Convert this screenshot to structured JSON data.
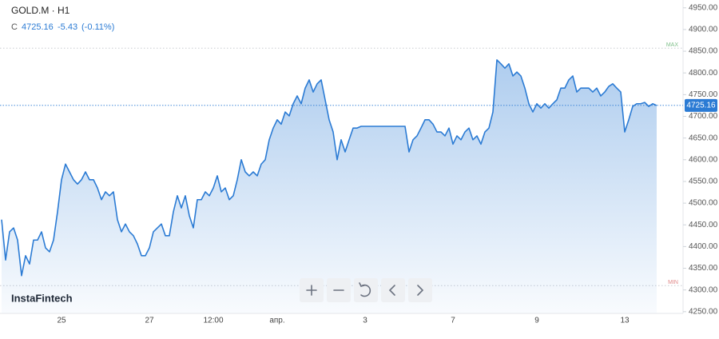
{
  "chart_data": {
    "type": "area",
    "symbol": "GOLD.M · H1",
    "price_prefix": "C",
    "last_price": 4725.16,
    "change": -5.43,
    "change_pct": {
      "value": -0.11,
      "label": "(-0.11%)"
    },
    "brand": "InstaFintech",
    "color": "#2b7bd4",
    "max_line": {
      "label": "MAX",
      "value": 4857
    },
    "min_line": {
      "label": "MIN",
      "value": 4310
    },
    "ylim": [
      4246,
      4968
    ],
    "yticks": [
      {
        "value": 4250,
        "label": "4250.00"
      },
      {
        "value": 4300,
        "label": "4300.00"
      },
      {
        "value": 4350,
        "label": "4350.00"
      },
      {
        "value": 4400,
        "label": "4400.00"
      },
      {
        "value": 4450,
        "label": "4450.00"
      },
      {
        "value": 4500,
        "label": "4500.00"
      },
      {
        "value": 4550,
        "label": "4550.00"
      },
      {
        "value": 4600,
        "label": "4600.00"
      },
      {
        "value": 4650,
        "label": "4650.00"
      },
      {
        "value": 4700,
        "label": "4700.00"
      },
      {
        "value": 4750,
        "label": "4750.00"
      },
      {
        "value": 4800,
        "label": "4800.00"
      },
      {
        "value": 4850,
        "label": "4850.00"
      },
      {
        "value": 4900,
        "label": "4900.00"
      },
      {
        "value": 4950,
        "label": "4950.00"
      }
    ],
    "categories": [
      null,
      null,
      null,
      null,
      null,
      null,
      null,
      null,
      null,
      null,
      null,
      null,
      null,
      null,
      null,
      "25",
      null,
      null,
      null,
      null,
      null,
      null,
      null,
      null,
      null,
      null,
      null,
      null,
      null,
      null,
      null,
      null,
      null,
      null,
      null,
      null,
      null,
      "27",
      null,
      null,
      null,
      null,
      null,
      null,
      null,
      null,
      null,
      null,
      null,
      null,
      null,
      null,
      null,
      "12:00",
      null,
      null,
      null,
      null,
      null,
      null,
      null,
      null,
      null,
      null,
      null,
      null,
      null,
      null,
      null,
      "апр.",
      null,
      null,
      null,
      null,
      null,
      null,
      null,
      null,
      null,
      null,
      null,
      null,
      null,
      null,
      null,
      null,
      null,
      null,
      null,
      null,
      null,
      "3",
      null,
      null,
      null,
      null,
      null,
      null,
      null,
      null,
      null,
      null,
      null,
      null,
      null,
      null,
      null,
      null,
      null,
      null,
      null,
      null,
      null,
      "7",
      null,
      null,
      null,
      null,
      null,
      null,
      null,
      null,
      null,
      null,
      null,
      null,
      null,
      null,
      null,
      null,
      null,
      null,
      null,
      null,
      "9",
      null,
      null,
      null,
      null,
      null,
      null,
      null,
      null,
      null,
      null,
      null,
      null,
      null,
      null,
      null,
      null,
      null,
      null,
      null,
      null,
      null,
      "13",
      null,
      null,
      null,
      null,
      null,
      null,
      null,
      null
    ],
    "values": [
      4462,
      4369,
      4434,
      4443,
      4415,
      4333,
      4379,
      4360,
      4415,
      4415,
      4434,
      4397,
      4388,
      4415,
      4480,
      4554,
      4590,
      4572,
      4554,
      4544,
      4554,
      4572,
      4554,
      4554,
      4535,
      4508,
      4526,
      4517,
      4526,
      4462,
      4434,
      4452,
      4434,
      4425,
      4406,
      4379,
      4379,
      4397,
      4434,
      4443,
      4452,
      4425,
      4425,
      4480,
      4517,
      4489,
      4517,
      4471,
      4443,
      4508,
      4508,
      4526,
      4517,
      4535,
      4563,
      4526,
      4535,
      4508,
      4517,
      4554,
      4600,
      4572,
      4563,
      4572,
      4563,
      4590,
      4600,
      4646,
      4673,
      4692,
      4682,
      4710,
      4701,
      4729,
      4747,
      4729,
      4765,
      4784,
      4756,
      4775,
      4784,
      4738,
      4692,
      4664,
      4600,
      4646,
      4618,
      4646,
      4673,
      4673,
      4677,
      4677,
      4677,
      4677,
      4677,
      4677,
      4677,
      4677,
      4677,
      4677,
      4677,
      4677,
      4618,
      4646,
      4655,
      4673,
      4692,
      4692,
      4682,
      4664,
      4664,
      4655,
      4673,
      4636,
      4655,
      4646,
      4664,
      4673,
      4646,
      4655,
      4636,
      4664,
      4673,
      4710,
      4830,
      4821,
      4811,
      4821,
      4793,
      4802,
      4793,
      4765,
      4729,
      4710,
      4729,
      4719,
      4729,
      4719,
      4729,
      4738,
      4765,
      4765,
      4784,
      4793,
      4756,
      4765,
      4765,
      4765,
      4756,
      4765,
      4747,
      4756,
      4769,
      4775,
      4765,
      4756,
      4664,
      4692,
      4723,
      4729,
      4729,
      4732,
      4723,
      4729,
      4725
    ]
  }
}
